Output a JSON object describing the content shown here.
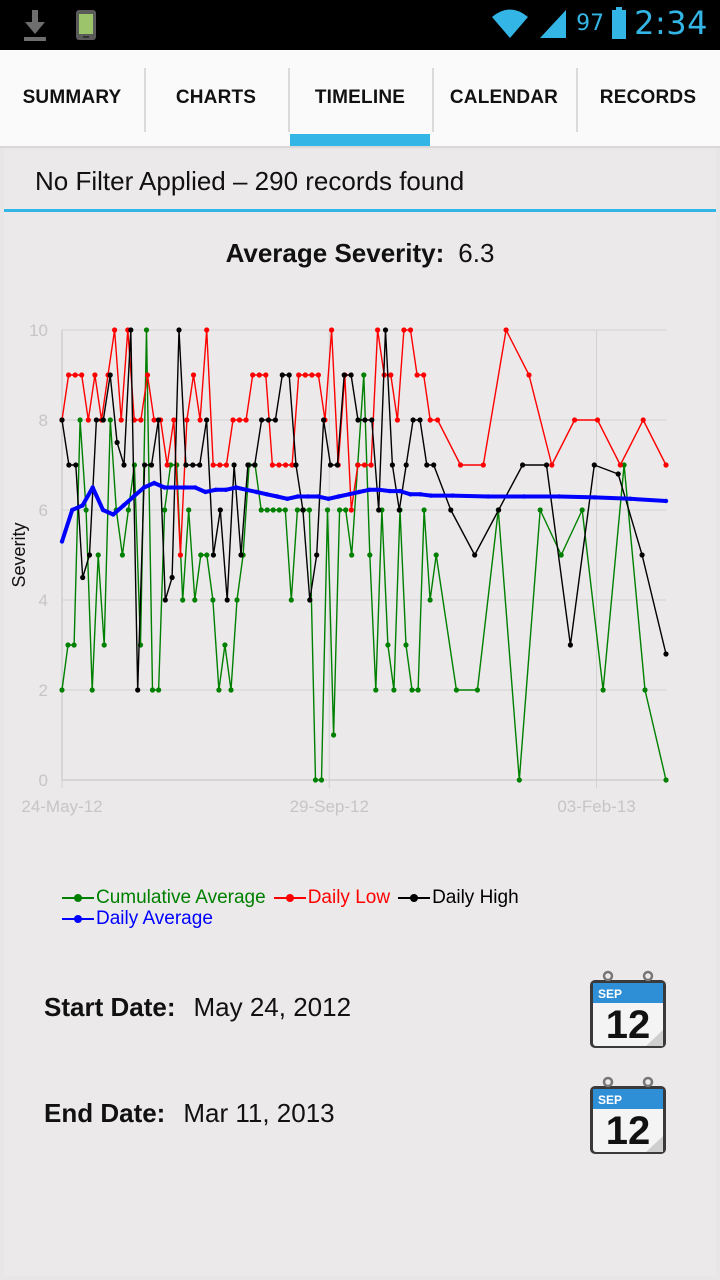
{
  "status_bar": {
    "battery_percent": "97",
    "time": "2:34",
    "icons": [
      "download-icon",
      "phone-status-icon",
      "wifi-icon",
      "signal-icon",
      "battery-icon"
    ]
  },
  "tabs": [
    {
      "label": "SUMMARY",
      "active": false
    },
    {
      "label": "CHARTS",
      "active": false
    },
    {
      "label": "TIMELINE",
      "active": true
    },
    {
      "label": "CALENDAR",
      "active": false
    },
    {
      "label": "RECORDS",
      "active": false
    }
  ],
  "filter_text": "No Filter Applied – 290 records found",
  "average": {
    "label": "Average Severity:",
    "value": "6.3"
  },
  "chart_data": {
    "type": "line",
    "ylabel": "Severity",
    "ylim": [
      0,
      10
    ],
    "yticks": [
      "0",
      "2",
      "4",
      "6",
      "8",
      "10"
    ],
    "xtick_labels": [
      "24-May-12",
      "29-Sep-12",
      "03-Feb-13"
    ],
    "legend_position": "bottom-left",
    "grid": true,
    "series": [
      {
        "name": "Cumulative Average",
        "color": "#008000",
        "values": [
          2,
          3,
          3,
          8,
          6,
          2,
          5,
          3,
          8,
          6,
          5,
          6,
          7,
          3,
          10,
          2,
          2,
          6,
          7,
          7,
          4,
          6,
          4,
          5,
          5,
          4,
          2,
          3,
          2,
          4,
          5,
          7,
          7,
          6,
          6,
          6,
          6,
          6,
          4,
          6,
          6,
          6,
          0,
          0,
          6,
          1,
          6,
          6,
          5,
          7,
          9,
          5,
          2,
          6,
          3,
          2,
          6,
          3,
          2,
          2,
          6,
          4,
          5,
          2,
          2,
          6,
          0,
          6,
          5,
          6,
          2,
          7,
          2,
          0
        ]
      },
      {
        "name": "Daily Low",
        "color": "#ff0000",
        "values": [
          8,
          9,
          9,
          9,
          8,
          9,
          8,
          9,
          10,
          8,
          10,
          8,
          8,
          9,
          8,
          8,
          7,
          8,
          5,
          8,
          9,
          8,
          10,
          7,
          7,
          7,
          8,
          8,
          8,
          9,
          9,
          9,
          7,
          7,
          7,
          7,
          9,
          9,
          9,
          9,
          8,
          10,
          7,
          9,
          6,
          7,
          7,
          7,
          10,
          9,
          9,
          8,
          10,
          10,
          9,
          9,
          8,
          8,
          7,
          7,
          10,
          9,
          7,
          8,
          8,
          7,
          8,
          7
        ]
      },
      {
        "name": "Daily High",
        "color": "#000000",
        "values": [
          8,
          7,
          7,
          4.5,
          5,
          8,
          8,
          9,
          7.5,
          7,
          10,
          2,
          7,
          7,
          8,
          4,
          4.5,
          10,
          7,
          7,
          7,
          8,
          5,
          6,
          4,
          7,
          5,
          7,
          7,
          8,
          8,
          8,
          9,
          9,
          7,
          6,
          4,
          5,
          8,
          7,
          7,
          9,
          9,
          8,
          8,
          8,
          6,
          10,
          7,
          6,
          7,
          8,
          8,
          7,
          7,
          6,
          5,
          6,
          7,
          7,
          3,
          7,
          6.8,
          5,
          2.8
        ]
      },
      {
        "name": "Daily Average",
        "color": "#0000ff",
        "values": [
          5.3,
          6.0,
          6.1,
          6.5,
          6.0,
          5.9,
          6.1,
          6.3,
          6.5,
          6.6,
          6.5,
          6.5,
          6.5,
          6.5,
          6.4,
          6.45,
          6.45,
          6.5,
          6.45,
          6.4,
          6.35,
          6.3,
          6.25,
          6.3,
          6.3,
          6.3,
          6.25,
          6.3,
          6.35,
          6.4,
          6.45,
          6.45,
          6.42,
          6.42,
          6.35,
          6.35,
          6.32,
          6.32,
          6.3,
          6.3,
          6.3,
          6.28,
          6.25,
          6.2
        ]
      }
    ]
  },
  "start_date": {
    "label": "Start Date:",
    "value": "May 24, 2012"
  },
  "end_date": {
    "label": "End Date:",
    "value": "Mar 11, 2013"
  },
  "calendar_icon": {
    "month": "SEP",
    "day": "12"
  }
}
